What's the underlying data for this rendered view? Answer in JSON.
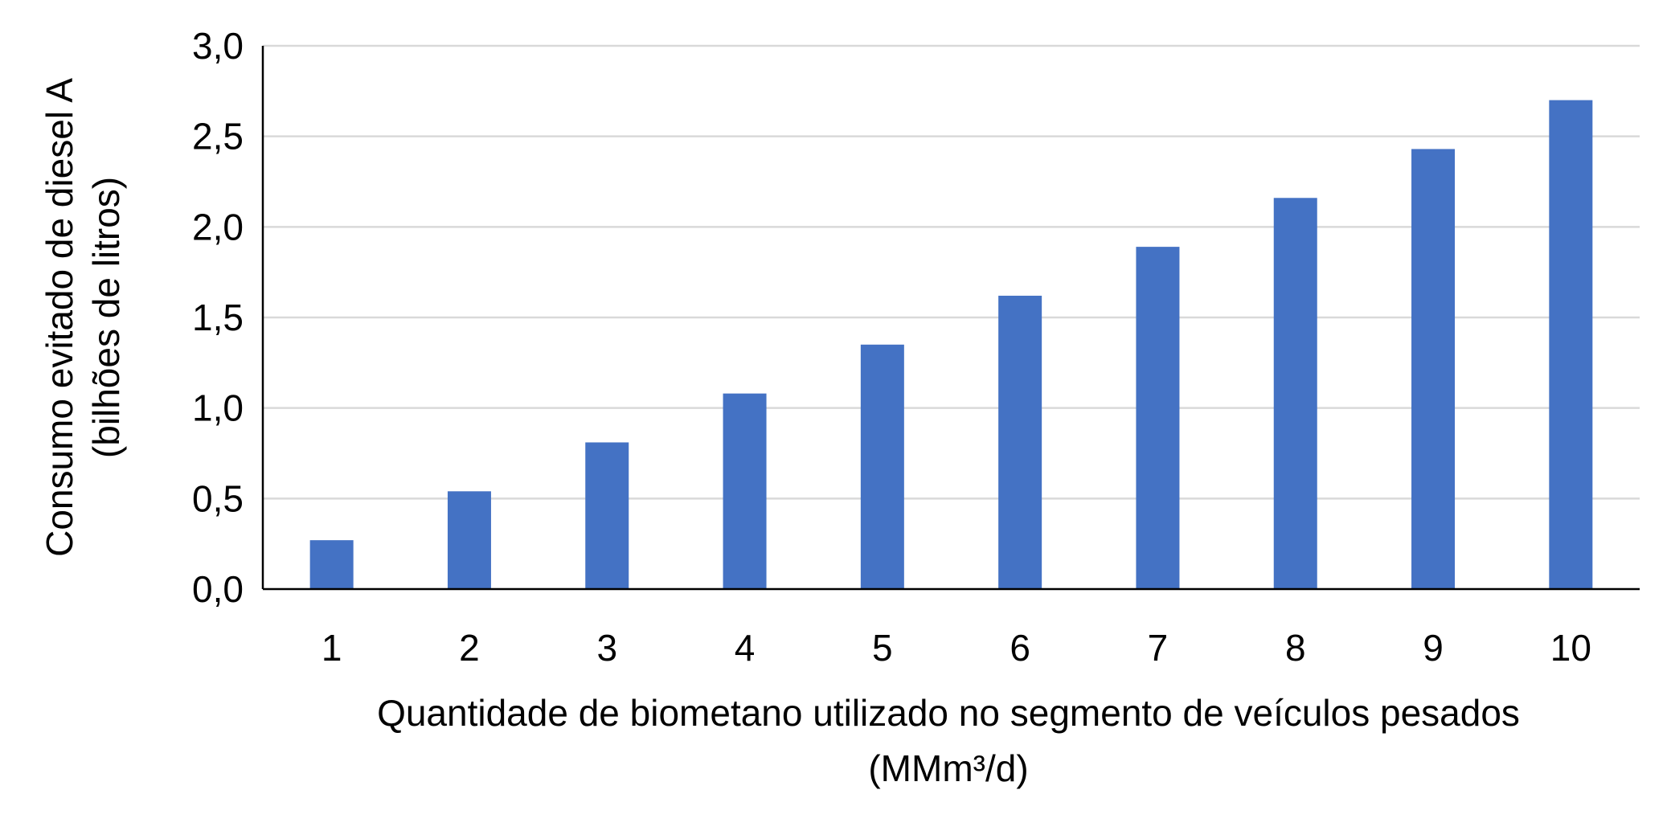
{
  "chart_data": {
    "type": "bar",
    "categories": [
      "1",
      "2",
      "3",
      "4",
      "5",
      "6",
      "7",
      "8",
      "9",
      "10"
    ],
    "values": [
      0.27,
      0.54,
      0.81,
      1.08,
      1.35,
      1.62,
      1.89,
      2.16,
      2.43,
      2.7
    ],
    "ylim": [
      0,
      3.0
    ],
    "yticks": [
      "0,0",
      "0,5",
      "1,0",
      "1,5",
      "2,0",
      "2,5",
      "3,0"
    ],
    "ylabel_line1": "Consumo evitado de diesel A",
    "ylabel_line2": "(bilhões de litros)",
    "xlabel_line1": "Quantidade de biometano utilizado no segmento de veículos pesados",
    "xlabel_line2": "(MMm³/d)",
    "grid": true,
    "legend": "none",
    "bar_color": "#4472C4"
  }
}
